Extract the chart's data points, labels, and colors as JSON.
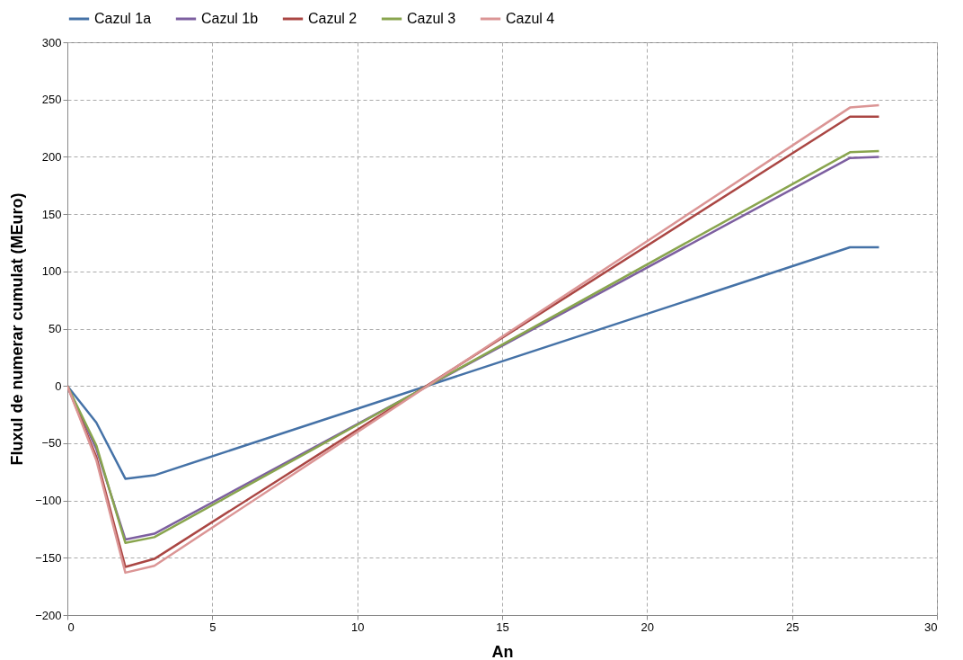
{
  "chart_data": {
    "type": "line",
    "xlabel": "An",
    "ylabel": "Fluxul de numerar cumulat (MEuro)",
    "x": [
      0,
      1,
      2,
      3,
      27,
      28
    ],
    "series": [
      {
        "name": "Cazul 1a",
        "color": "#4572a7",
        "values": [
          0,
          -32,
          -81,
          -78,
          121,
          121
        ]
      },
      {
        "name": "Cazul 1b",
        "color": "#7d5fa0",
        "values": [
          0,
          -55,
          -134,
          -129,
          199,
          200
        ]
      },
      {
        "name": "Cazul 2",
        "color": "#aa4643",
        "values": [
          0,
          -62,
          -158,
          -151,
          235,
          235
        ]
      },
      {
        "name": "Cazul 3",
        "color": "#89a54e",
        "values": [
          0,
          -52,
          -137,
          -132,
          204,
          205
        ]
      },
      {
        "name": "Cazul 4",
        "color": "#db9595",
        "values": [
          0,
          -65,
          -163,
          -157,
          243,
          245
        ]
      }
    ],
    "xlim": [
      0,
      30
    ],
    "xticks": [
      0,
      5,
      10,
      15,
      20,
      25,
      30
    ],
    "ylim": [
      -200,
      300
    ],
    "yticks": [
      -200,
      -150,
      -100,
      -50,
      0,
      50,
      100,
      150,
      200,
      250,
      300
    ],
    "grid": true,
    "legend": "top",
    "marker": "none",
    "line_style": "solid"
  }
}
